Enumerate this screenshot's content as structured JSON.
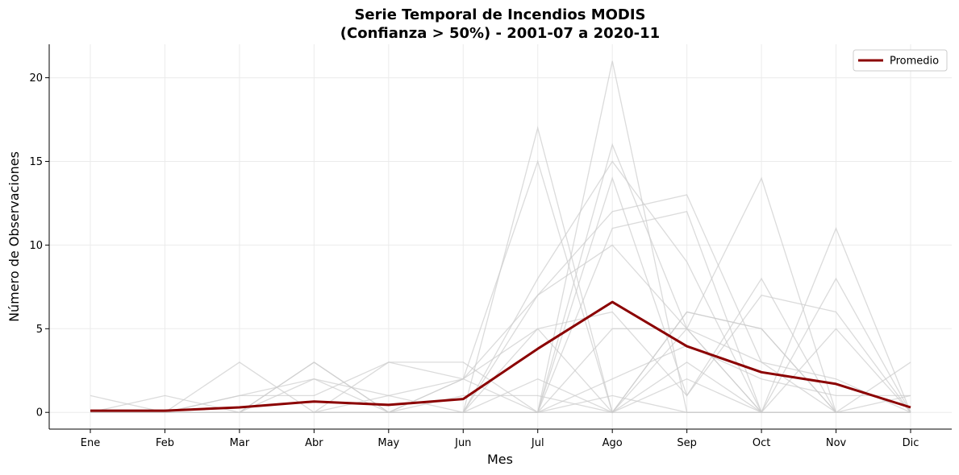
{
  "chart_data": {
    "type": "line",
    "title_line1": "Serie Temporal de Incendios MODIS",
    "title_line2": "(Confianza > 50%) - 2001-07 a 2020-11",
    "xlabel": "Mes",
    "ylabel": "Número de Observaciones",
    "categories": [
      "Ene",
      "Feb",
      "Mar",
      "Abr",
      "May",
      "Jun",
      "Jul",
      "Ago",
      "Sep",
      "Oct",
      "Nov",
      "Dic"
    ],
    "ylim": [
      -1,
      22
    ],
    "yticks": [
      "0",
      "5",
      "10",
      "15",
      "20"
    ],
    "grid": true,
    "legend_position": "top-right",
    "colors": {
      "background_series": "#cccccc",
      "mean": "#8b0000"
    },
    "background_series": [
      [
        1,
        0,
        0,
        0,
        0,
        0,
        17,
        0,
        6,
        5,
        0,
        0
      ],
      [
        0,
        1,
        0,
        0,
        0,
        2,
        15,
        0,
        5,
        14,
        0,
        0
      ],
      [
        0,
        0,
        3,
        0,
        3,
        3,
        0,
        21,
        0,
        0,
        11,
        0
      ],
      [
        0,
        0,
        0,
        3,
        0,
        0,
        0,
        16,
        5,
        0,
        8,
        0
      ],
      [
        0,
        0,
        1,
        2,
        1,
        0,
        8,
        15,
        9,
        0,
        0,
        3
      ],
      [
        0,
        0,
        0,
        0,
        0,
        2,
        0,
        14,
        1,
        8,
        0,
        0
      ],
      [
        0,
        0,
        1,
        1,
        3,
        2,
        7,
        12,
        13,
        3,
        0,
        0
      ],
      [
        0,
        0,
        0,
        0,
        0,
        0,
        0,
        11,
        12,
        0,
        0,
        0
      ],
      [
        0,
        0,
        0,
        3,
        0,
        0,
        7,
        10,
        5,
        0,
        5,
        0
      ],
      [
        0,
        0,
        0,
        0,
        0,
        0,
        5,
        6,
        1,
        7,
        6,
        0
      ],
      [
        0,
        0,
        0,
        0,
        1,
        2,
        5,
        0,
        6,
        5,
        0,
        1
      ],
      [
        0,
        0,
        0,
        0,
        0,
        0,
        0,
        0,
        3,
        0,
        0,
        0
      ],
      [
        0,
        0,
        0,
        0,
        0,
        0,
        0,
        2,
        4,
        2,
        1,
        1
      ],
      [
        0,
        0,
        0,
        2,
        0,
        0,
        2,
        0,
        0,
        0,
        0,
        0
      ],
      [
        0,
        0,
        0,
        0,
        0,
        1,
        1,
        0,
        2,
        0,
        0,
        0
      ],
      [
        0,
        0,
        0,
        0,
        0,
        0,
        0,
        1,
        0,
        0,
        0,
        0
      ],
      [
        0,
        0,
        0,
        0,
        0,
        0,
        0,
        5,
        5,
        3,
        2,
        0
      ]
    ],
    "series": [
      {
        "name": "Promedio",
        "values": [
          0.1,
          0.1,
          0.3,
          0.65,
          0.45,
          0.8,
          3.8,
          6.6,
          3.95,
          2.4,
          1.7,
          0.3
        ]
      }
    ]
  }
}
